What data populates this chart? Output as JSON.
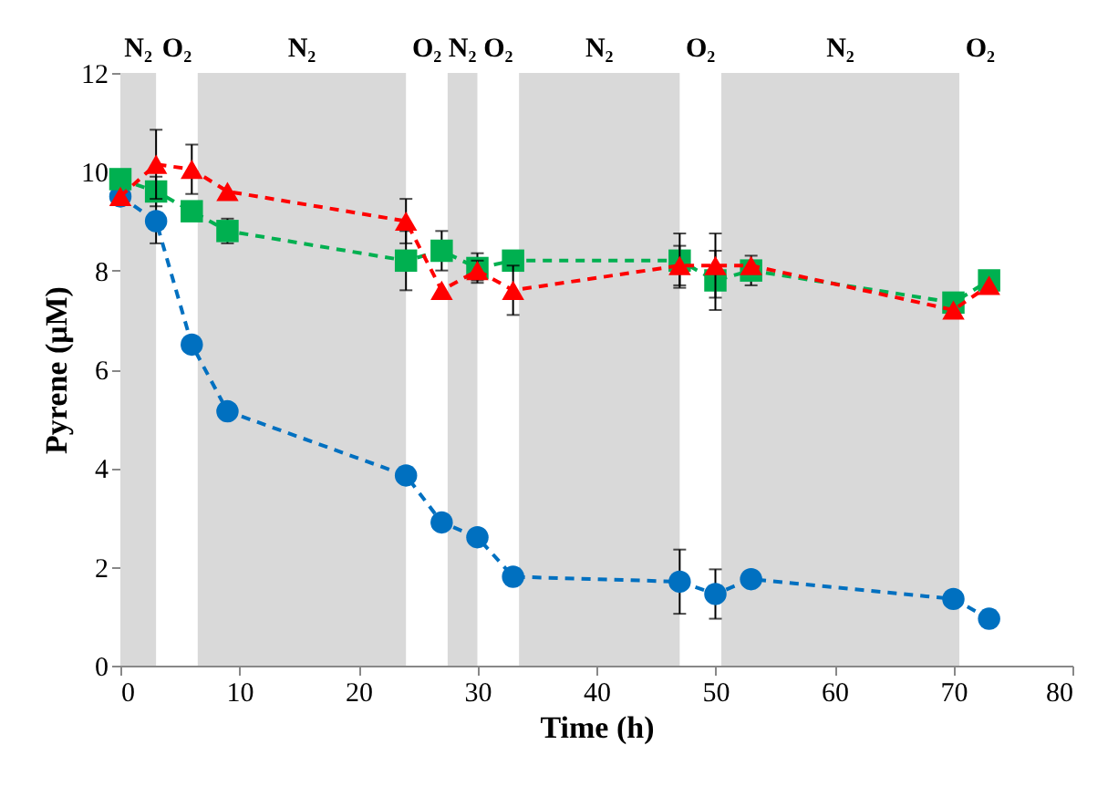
{
  "chart_data": {
    "type": "line",
    "xlabel": "Time (h)",
    "ylabel": "Pyrene (μM)",
    "xlim": [
      0,
      80
    ],
    "xticks": [
      0,
      10,
      20,
      30,
      40,
      50,
      60,
      70,
      80
    ],
    "ylim": [
      0,
      12
    ],
    "yticks": [
      0,
      2,
      4,
      6,
      8,
      10,
      12
    ],
    "grid": false,
    "line_style": "dashed",
    "x": [
      0,
      3,
      6,
      9,
      24,
      27,
      30,
      33,
      47,
      50,
      53,
      70,
      73
    ],
    "series": [
      {
        "color": "#0070c0",
        "marker": "circle",
        "values": [
          9.5,
          9.0,
          6.5,
          5.15,
          3.85,
          2.9,
          2.6,
          1.8,
          1.7,
          1.45,
          1.75,
          1.35,
          0.95
        ],
        "errors": [
          null,
          0.45,
          null,
          null,
          null,
          null,
          null,
          null,
          0.65,
          0.5,
          null,
          null,
          null
        ]
      },
      {
        "color": "#00b050",
        "marker": "square",
        "values": [
          9.85,
          9.6,
          9.2,
          8.8,
          8.2,
          8.4,
          8.05,
          8.2,
          8.2,
          7.8,
          8.0,
          7.35,
          7.8
        ],
        "errors": [
          null,
          0.3,
          null,
          0.25,
          0.6,
          0.4,
          0.3,
          null,
          0.55,
          0.6,
          0.3,
          null,
          null
        ]
      },
      {
        "color": "#ff0000",
        "marker": "triangle",
        "values": [
          9.5,
          10.15,
          10.05,
          9.6,
          9.0,
          7.6,
          8.0,
          7.6,
          8.1,
          8.1,
          8.1,
          7.2,
          7.7
        ],
        "errors": [
          null,
          0.7,
          0.5,
          null,
          0.45,
          null,
          0.2,
          0.5,
          0.4,
          0.65,
          null,
          null,
          null
        ]
      }
    ],
    "bands": [
      {
        "axis": "x",
        "from": 0,
        "to": 3,
        "label": "N₂",
        "color": "#d9d9d9"
      },
      {
        "axis": "x",
        "from": 6.5,
        "to": 24,
        "label": "N₂",
        "color": "#d9d9d9"
      },
      {
        "axis": "x",
        "from": 27.5,
        "to": 30,
        "label": "N₂",
        "color": "#d9d9d9"
      },
      {
        "axis": "x",
        "from": 33.5,
        "to": 47,
        "label": "N₂",
        "color": "#d9d9d9"
      },
      {
        "axis": "x",
        "from": 50.5,
        "to": 70.5,
        "label": "N₂",
        "color": "#d9d9d9"
      }
    ],
    "annotations": [
      "O₂",
      "O₂",
      "O₂",
      "O₂",
      "O₂"
    ]
  }
}
